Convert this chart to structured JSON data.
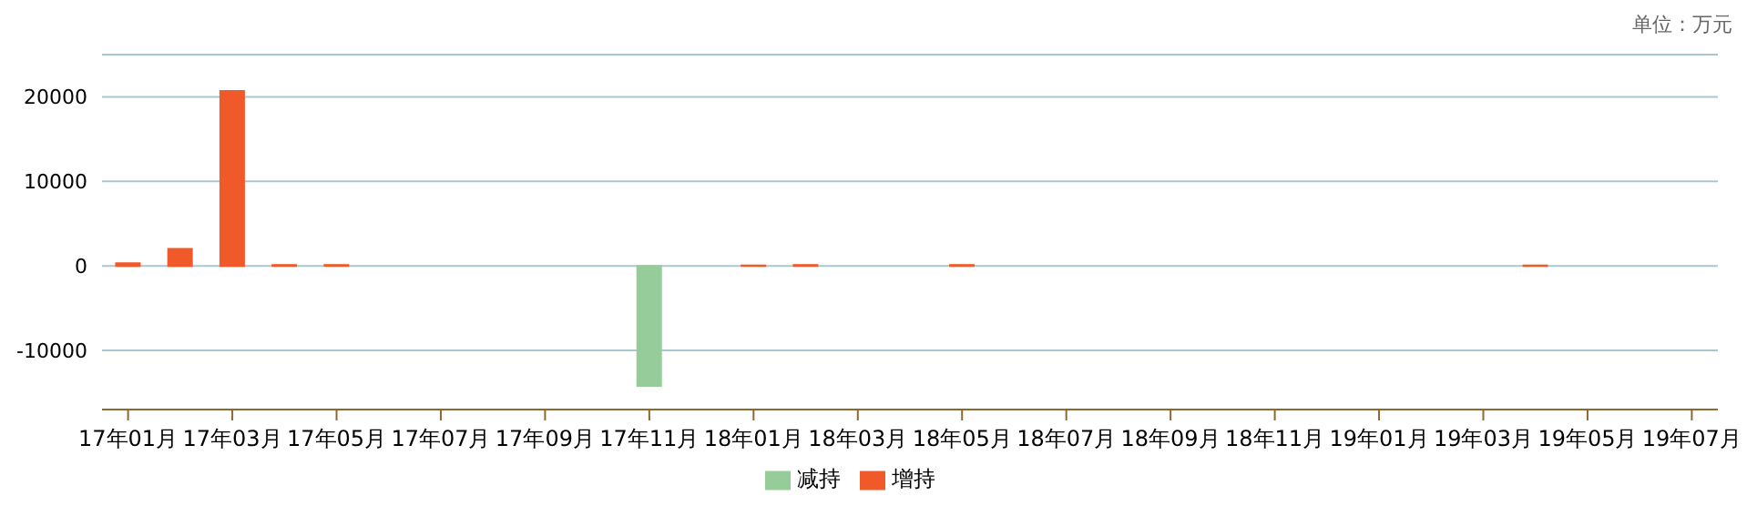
{
  "chart_data": {
    "type": "bar",
    "annotations": [
      "单位：万元"
    ],
    "categories": [
      "17年01月",
      null,
      "17年03月",
      null,
      "17年05月",
      null,
      "17年07月",
      null,
      "17年09月",
      null,
      "17年11月",
      null,
      "18年01月",
      null,
      "18年03月",
      null,
      "18年05月",
      null,
      "18年07月",
      null,
      "18年09月",
      null,
      "18年11月",
      null,
      "19年01月",
      null,
      "19年03月",
      null,
      "19年05月",
      null,
      "19年07月"
    ],
    "series": [
      {
        "name": "增持",
        "color": "#f05a2a",
        "values": [
          300,
          2000,
          20700,
          100,
          100,
          null,
          null,
          null,
          null,
          null,
          null,
          null,
          50,
          100,
          null,
          null,
          100,
          null,
          null,
          null,
          null,
          null,
          null,
          null,
          null,
          null,
          null,
          50,
          null,
          null,
          null
        ]
      },
      {
        "name": "减持",
        "color": "#96cc9a",
        "values": [
          null,
          null,
          null,
          null,
          null,
          null,
          null,
          null,
          null,
          null,
          -14200,
          null,
          null,
          null,
          null,
          null,
          null,
          null,
          null,
          null,
          null,
          null,
          null,
          null,
          null,
          null,
          null,
          null,
          null,
          null,
          null
        ]
      }
    ],
    "stacked": true,
    "ylim": [
      -17000,
      25000
    ],
    "yticks": [
      -10000,
      0,
      10000,
      20000
    ],
    "grid": "y",
    "legend": "bottom"
  }
}
